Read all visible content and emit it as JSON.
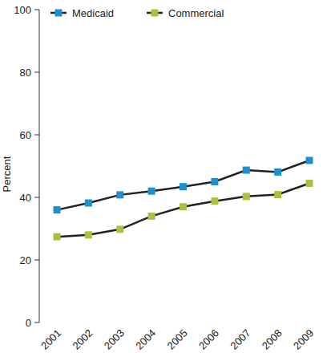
{
  "chart_data": {
    "type": "line",
    "y_label": "Percent",
    "categories": [
      "2001",
      "2002",
      "2003",
      "2004",
      "2005",
      "2006",
      "2007",
      "2008",
      "2009"
    ],
    "series": [
      {
        "name": "Medicaid",
        "color": "#1f8fd0",
        "marker": "square",
        "values": [
          36,
          38.2,
          40.8,
          42,
          43.4,
          45,
          48.7,
          48.1,
          51.8
        ]
      },
      {
        "name": "Commercial",
        "color": "#a9c23c",
        "marker": "square",
        "values": [
          27.4,
          28,
          29.8,
          34,
          37,
          38.8,
          40.3,
          40.9,
          44.5
        ]
      }
    ],
    "ylim": [
      0,
      100
    ],
    "yticks": [
      0,
      20,
      40,
      60,
      80,
      100
    ],
    "legend": "top",
    "grid": false
  }
}
